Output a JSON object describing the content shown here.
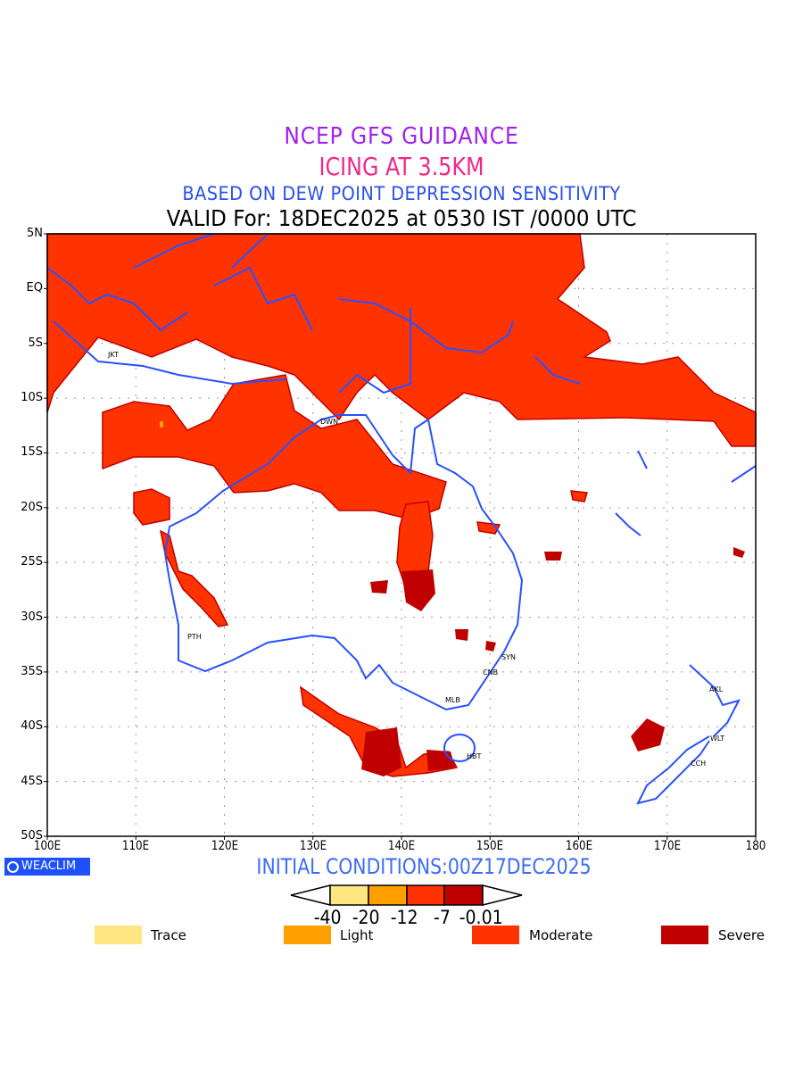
{
  "title": {
    "line1": "NCEP GFS GUIDANCE",
    "line2": "ICING AT 3.5KM",
    "line3": "BASED ON DEW POINT DEPRESSION SENSITIVITY",
    "line4": "VALID For: 18DEC2025 at 0530 IST /0000 UTC"
  },
  "map": {
    "lat_labels": [
      "5N",
      "EQ",
      "5S",
      "10S",
      "15S",
      "20S",
      "25S",
      "30S",
      "35S",
      "40S",
      "45S",
      "50S"
    ],
    "lon_labels": [
      "100E",
      "110E",
      "120E",
      "130E",
      "140E",
      "150E",
      "160E",
      "170E",
      "180"
    ],
    "cities": [
      "JKT",
      "DWN",
      "PTH",
      "SYN",
      "CNB",
      "MLB",
      "HBT",
      "AKL",
      "WLT",
      "CCH"
    ],
    "colors": {
      "coast": "#2850ff",
      "moderate": "#ff3300",
      "severe": "#c00000",
      "light": "#ffa000",
      "trace": "#ffe680"
    }
  },
  "footer": {
    "brand": "WEACLIM",
    "initial_conditions": "INITIAL CONDITIONS:00Z17DEC2025"
  },
  "colorbar": {
    "ticks": [
      "-40",
      "-20",
      "-12",
      "-7",
      "-0.01"
    ],
    "colors": [
      "#ffe680",
      "#ffa000",
      "#ff3300",
      "#c00000"
    ]
  },
  "legend": [
    {
      "label": "Trace",
      "color": "#ffe680"
    },
    {
      "label": "Light",
      "color": "#ffa000"
    },
    {
      "label": "Moderate",
      "color": "#ff3300"
    },
    {
      "label": "Severe",
      "color": "#c00000"
    }
  ]
}
